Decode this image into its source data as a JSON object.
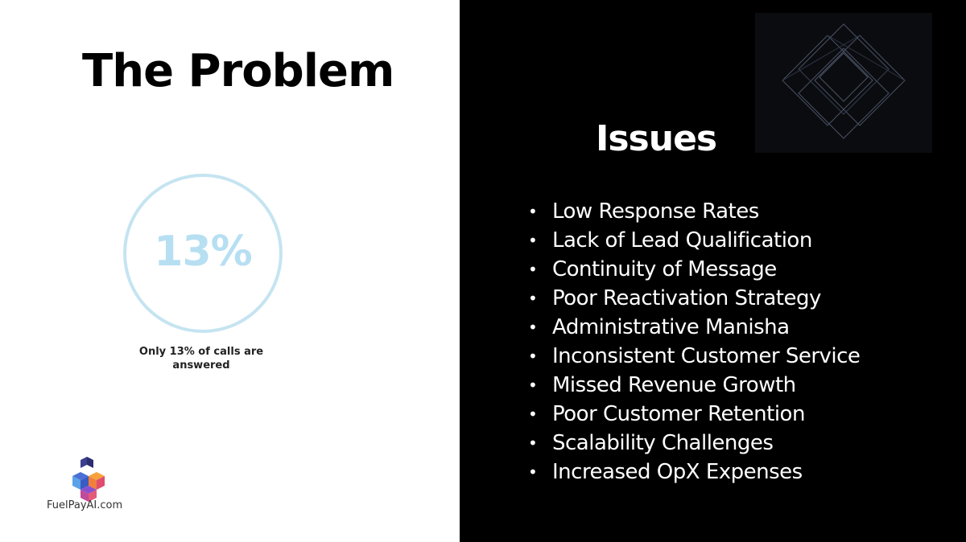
{
  "left": {
    "title": "The Problem",
    "stat": {
      "value": "13%",
      "caption": "Only 13% of calls are answered"
    },
    "brand": {
      "logo_icon": "cube-logo-icon",
      "name": "FuelPayAI.com"
    }
  },
  "right": {
    "heading": "Issues",
    "decoration_icon": "diamond-grid-icon",
    "bullet": "•",
    "items": [
      "Low Response Rates",
      "Lack of Lead Qualification",
      "Continuity of Message",
      "Poor Reactivation Strategy",
      "Administrative Manisha",
      "Inconsistent Customer Service",
      "Missed Revenue Growth",
      "Poor Customer Retention",
      "Scalability Challenges",
      "Increased OpX Expenses"
    ]
  },
  "colors": {
    "left_background": "#ffffff",
    "right_background": "#000000",
    "stat_accent": "#b7dff2",
    "text_dark": "#000000",
    "text_light": "#ffffff"
  }
}
